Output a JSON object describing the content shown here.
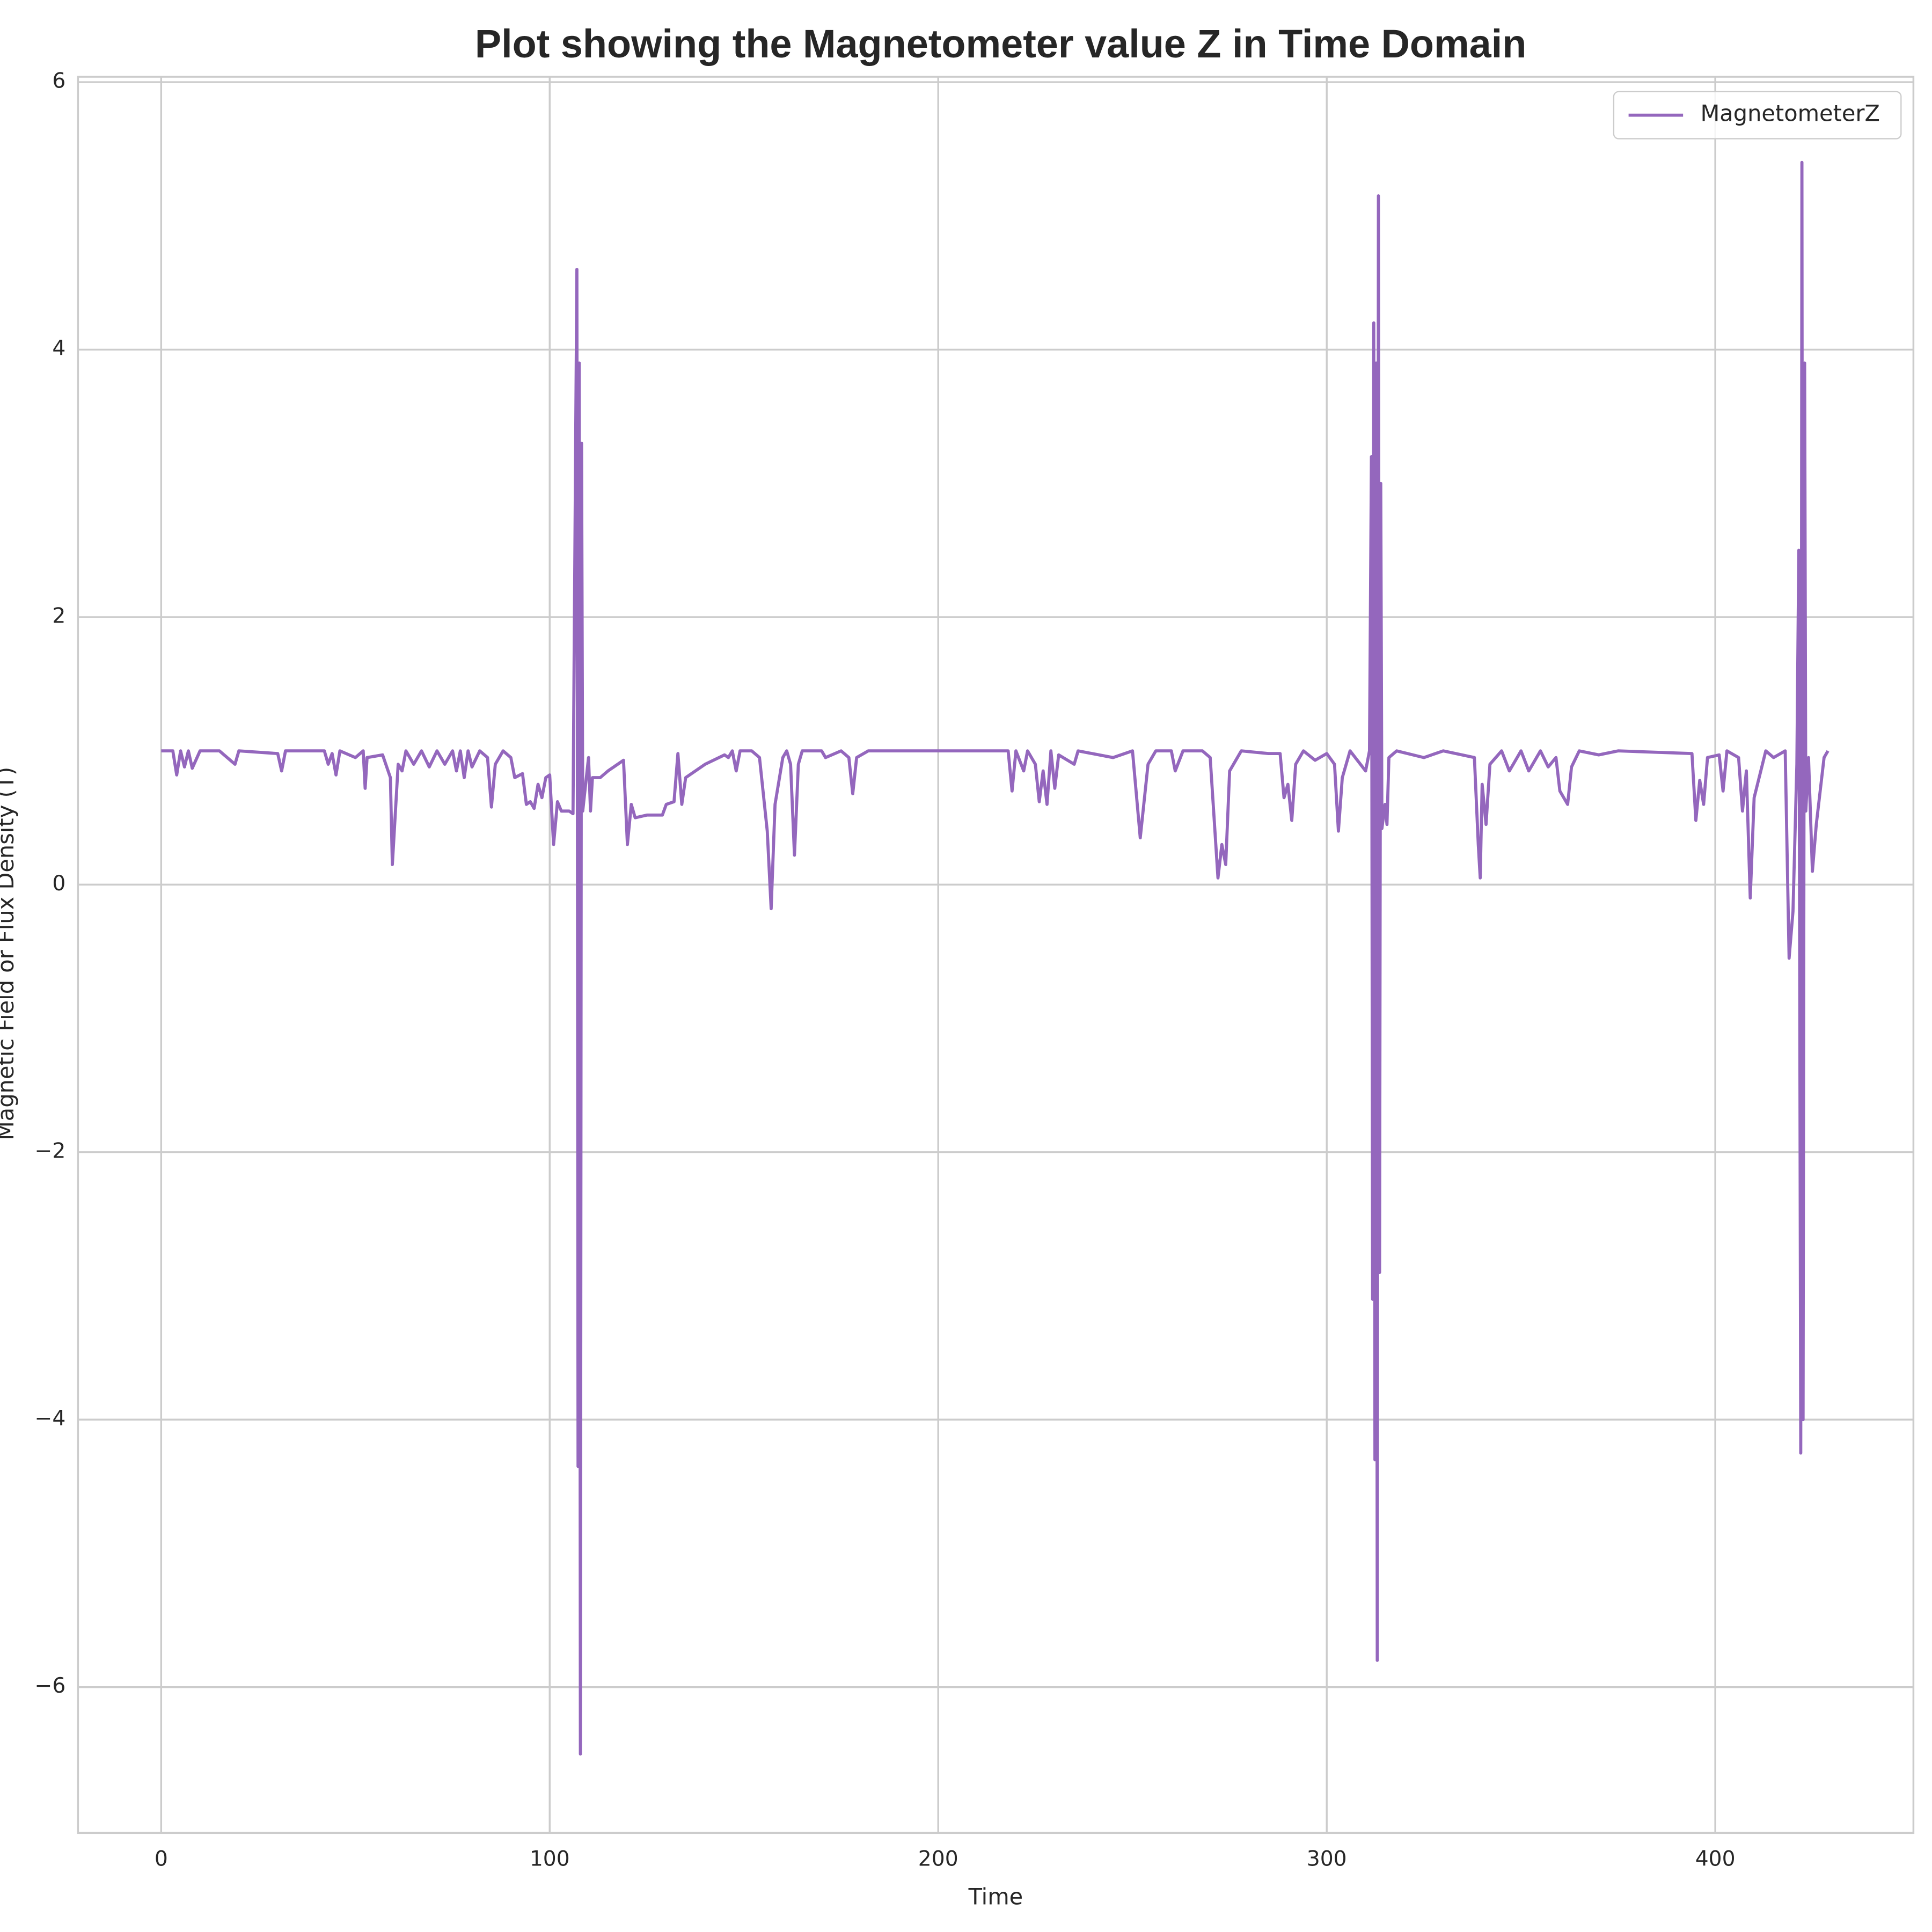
{
  "chart_data": {
    "type": "line",
    "title": "Plot showing the Magnetometer value Z in Time Domain",
    "xlabel": "Time",
    "ylabel": "Magnetic Field or Flux Density (T)",
    "legend": "upper right",
    "grid": true,
    "xlim": [
      -21.4,
      451
    ],
    "ylim": [
      -7.09,
      6.04
    ],
    "xticks": [
      0,
      100,
      200,
      300,
      400
    ],
    "yticks": [
      {
        "value": -6,
        "label": "−6"
      },
      {
        "value": -4,
        "label": "−4"
      },
      {
        "value": -2,
        "label": "−2"
      },
      0,
      2,
      4,
      6
    ],
    "x": [
      0,
      3,
      4,
      5,
      6,
      7,
      8,
      10,
      15,
      19,
      20,
      30,
      31,
      32,
      42,
      43,
      44,
      45,
      46,
      50,
      52,
      52.5,
      53,
      57,
      59,
      59.5,
      60,
      61,
      62,
      63,
      65,
      67,
      69,
      71,
      73,
      75,
      76,
      77,
      78,
      79,
      80,
      82,
      84,
      85,
      86,
      88,
      90,
      91,
      93,
      94,
      95,
      96,
      97,
      98,
      99,
      100,
      101,
      102,
      103,
      105,
      106,
      107,
      107.3,
      107.6,
      107.9,
      108.2,
      108.5,
      110,
      110.5,
      111,
      113,
      115,
      119,
      120,
      121,
      122,
      125,
      129,
      130,
      132,
      133,
      134,
      135,
      140,
      145,
      146,
      147,
      148,
      149,
      152,
      154,
      156,
      157,
      158,
      160,
      161,
      162,
      163,
      164,
      165,
      170,
      171,
      175,
      177,
      178,
      179,
      182,
      210,
      218,
      219,
      220,
      222,
      223,
      225,
      226,
      227,
      228,
      229,
      230,
      231,
      235,
      236,
      245,
      250,
      252,
      254,
      256,
      260,
      261,
      263,
      268,
      270,
      272,
      273,
      274,
      275,
      278,
      285,
      288,
      289,
      290,
      291,
      292,
      294,
      297,
      300,
      302,
      303,
      304,
      306,
      310,
      311,
      311.5,
      311.8,
      312.1,
      312.4,
      312.7,
      313,
      313.3,
      313.6,
      313.9,
      314.2,
      315,
      315.5,
      316,
      318,
      325,
      330,
      338,
      339,
      339.5,
      340,
      341,
      342,
      345,
      347,
      350,
      352,
      355,
      357,
      359,
      360,
      362,
      363,
      365,
      370,
      375,
      394,
      395,
      396,
      397,
      398,
      401,
      402,
      403,
      406,
      407,
      408,
      409,
      410,
      413,
      415,
      418,
      419,
      420,
      421,
      421.5,
      422,
      422.3,
      422.6,
      423,
      423.3,
      424,
      425,
      426,
      427,
      428,
      429
    ],
    "series": [
      {
        "name": "MagnetometerZ",
        "color": "#9467bd",
        "values": [
          1,
          1,
          0.82,
          1,
          0.88,
          1,
          0.87,
          1,
          1,
          0.9,
          1,
          0.98,
          0.85,
          1,
          1,
          0.9,
          0.98,
          0.82,
          1,
          0.95,
          1,
          0.72,
          0.95,
          0.97,
          0.8,
          0.15,
          0.4,
          0.9,
          0.85,
          1,
          0.9,
          1,
          0.88,
          1,
          0.9,
          1,
          0.85,
          1,
          0.8,
          1,
          0.88,
          1,
          0.95,
          0.58,
          0.9,
          1,
          0.95,
          0.8,
          0.83,
          0.6,
          0.62,
          0.57,
          0.75,
          0.65,
          0.8,
          0.82,
          0.3,
          0.62,
          0.55,
          0.55,
          0.53,
          4.6,
          -4.35,
          3.9,
          -6.5,
          3.3,
          0.55,
          0.95,
          0.55,
          0.8,
          0.8,
          0.85,
          0.93,
          0.3,
          0.6,
          0.5,
          0.52,
          0.52,
          0.6,
          0.62,
          0.98,
          0.6,
          0.8,
          0.9,
          0.97,
          0.95,
          1,
          0.85,
          1,
          1,
          0.95,
          0.4,
          -0.18,
          0.6,
          0.95,
          1,
          0.9,
          0.22,
          0.9,
          1,
          1,
          0.95,
          1,
          0.95,
          0.68,
          0.95,
          1,
          1,
          1,
          0.7,
          1,
          0.85,
          1,
          0.9,
          0.62,
          0.85,
          0.6,
          1,
          0.72,
          0.97,
          0.9,
          1,
          0.95,
          1,
          0.35,
          0.9,
          1,
          1,
          0.85,
          1,
          1,
          0.95,
          0.05,
          0.3,
          0.15,
          0.85,
          1,
          0.98,
          0.98,
          0.65,
          0.75,
          0.48,
          0.9,
          1,
          0.93,
          0.98,
          0.9,
          0.4,
          0.8,
          1,
          0.85,
          1,
          3.2,
          -3.1,
          4.2,
          -4.3,
          3.9,
          -5.8,
          5.15,
          -2.9,
          3.0,
          0.42,
          0.6,
          0.45,
          0.95,
          1,
          0.95,
          1,
          0.95,
          0.3,
          0.05,
          0.75,
          0.45,
          0.9,
          1,
          0.85,
          1,
          0.85,
          1,
          0.88,
          0.95,
          0.7,
          0.6,
          0.88,
          1,
          0.97,
          1,
          0.98,
          0.48,
          0.78,
          0.6,
          0.95,
          0.97,
          0.7,
          1,
          0.95,
          0.55,
          0.85,
          -0.1,
          0.65,
          1,
          0.95,
          1,
          -0.55,
          -0.2,
          0.9,
          2.5,
          -4.25,
          5.4,
          -4.0,
          3.9,
          0.55,
          0.95,
          0.1,
          0.45,
          0.7,
          0.95,
          1
        ]
      }
    ]
  }
}
